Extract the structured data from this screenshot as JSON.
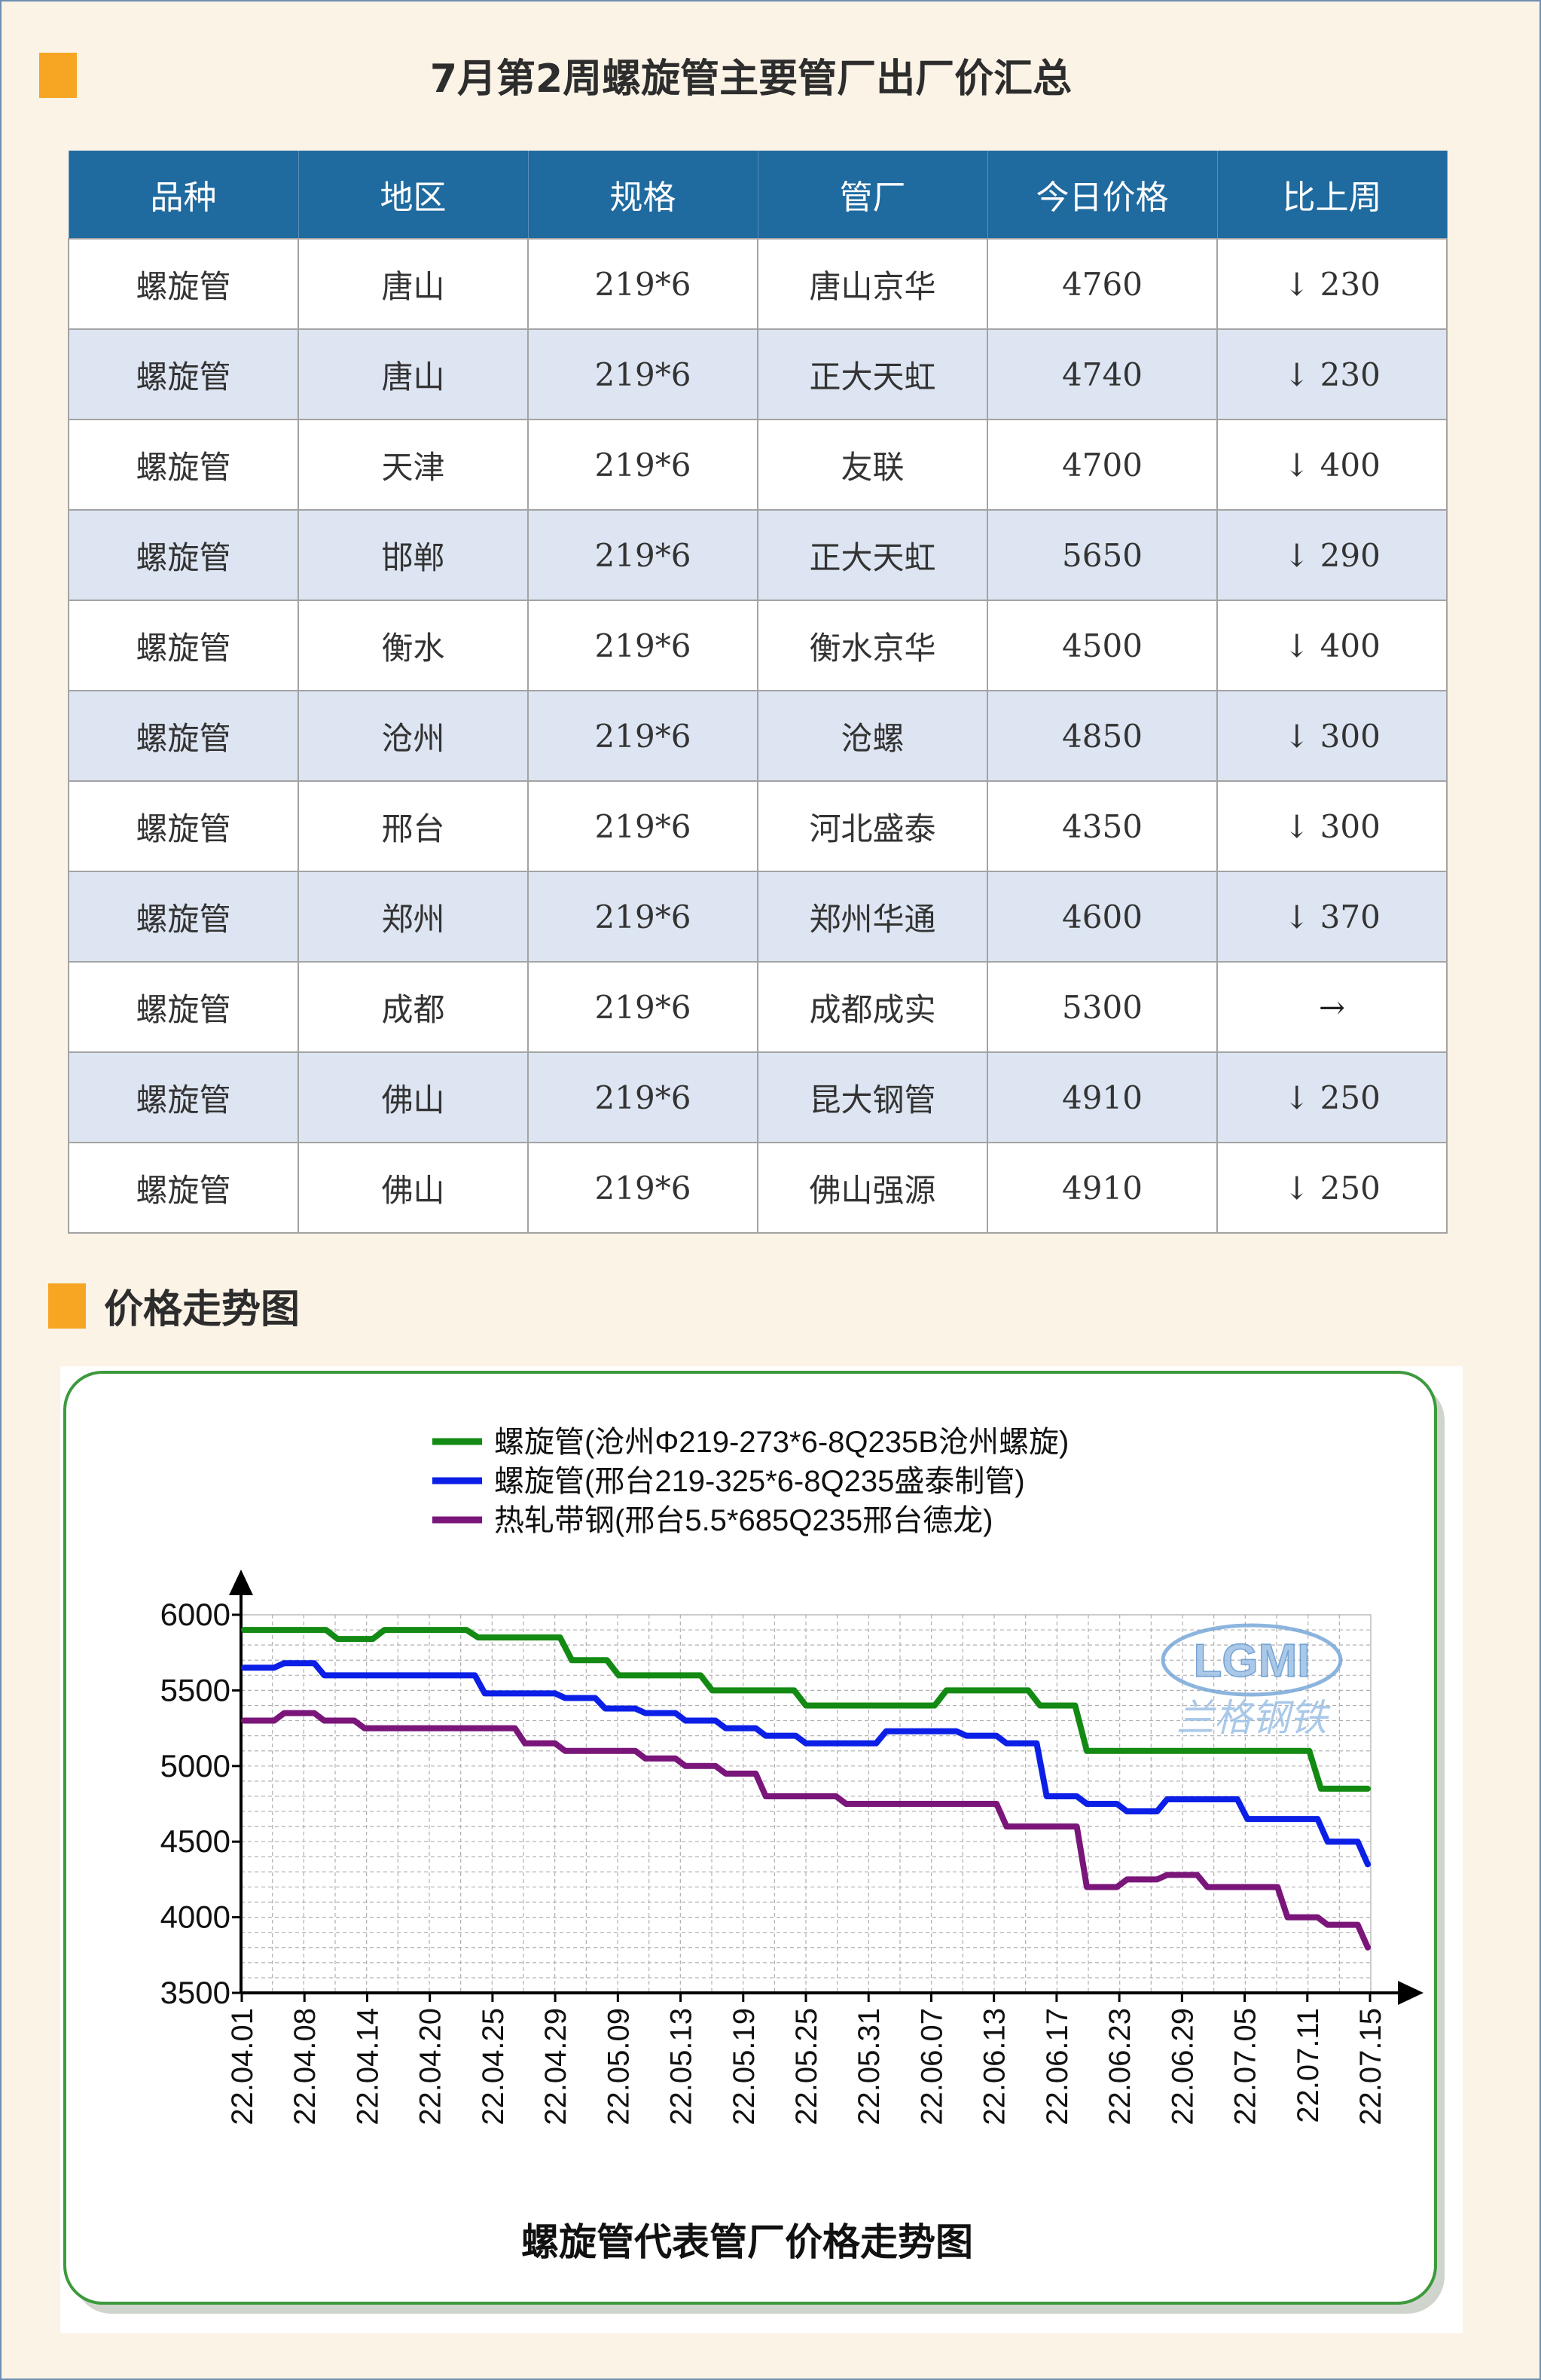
{
  "header": {
    "title": "7月第2周螺旋管主要管厂出厂价汇总"
  },
  "table": {
    "columns": [
      "品种",
      "地区",
      "规格",
      "管厂",
      "今日价格",
      "比上周"
    ],
    "rows": [
      {
        "variety": "螺旋管",
        "region": "唐山",
        "spec": "219*6",
        "mill": "唐山京华",
        "price": "4760",
        "change": "↓ 230"
      },
      {
        "variety": "螺旋管",
        "region": "唐山",
        "spec": "219*6",
        "mill": "正大天虹",
        "price": "4740",
        "change": "↓ 230"
      },
      {
        "variety": "螺旋管",
        "region": "天津",
        "spec": "219*6",
        "mill": "友联",
        "price": "4700",
        "change": "↓ 400"
      },
      {
        "variety": "螺旋管",
        "region": "邯郸",
        "spec": "219*6",
        "mill": "正大天虹",
        "price": "5650",
        "change": "↓ 290"
      },
      {
        "variety": "螺旋管",
        "region": "衡水",
        "spec": "219*6",
        "mill": "衡水京华",
        "price": "4500",
        "change": "↓ 400"
      },
      {
        "variety": "螺旋管",
        "region": "沧州",
        "spec": "219*6",
        "mill": "沧螺",
        "price": "4850",
        "change": "↓ 300"
      },
      {
        "variety": "螺旋管",
        "region": "邢台",
        "spec": "219*6",
        "mill": "河北盛泰",
        "price": "4350",
        "change": "↓ 300"
      },
      {
        "variety": "螺旋管",
        "region": "郑州",
        "spec": "219*6",
        "mill": "郑州华通",
        "price": "4600",
        "change": "↓ 370"
      },
      {
        "variety": "螺旋管",
        "region": "成都",
        "spec": "219*6",
        "mill": "成都成实",
        "price": "5300",
        "change": "→"
      },
      {
        "variety": "螺旋管",
        "region": "佛山",
        "spec": "219*6",
        "mill": "昆大钢管",
        "price": "4910",
        "change": "↓ 250"
      },
      {
        "variety": "螺旋管",
        "region": "佛山",
        "spec": "219*6",
        "mill": "佛山强源",
        "price": "4910",
        "change": "↓ 250"
      }
    ]
  },
  "section2": {
    "title": "价格走势图"
  },
  "colors": {
    "accent": "#f6a623",
    "header_bg": "#1f6a9f",
    "alt_row": "#dde5f2",
    "down": "#2e9a3c"
  },
  "chart_data": {
    "type": "line",
    "title": "螺旋管代表管厂价格走势图",
    "xlabel": "",
    "ylabel": "",
    "ylim": [
      3500,
      6000
    ],
    "yticks": [
      6000,
      5500,
      5000,
      4500,
      4000,
      3500
    ],
    "x_ticks": [
      "22.04.01",
      "22.04.08",
      "22.04.14",
      "22.04.20",
      "22.04.25",
      "22.04.29",
      "22.05.09",
      "22.05.13",
      "22.05.19",
      "22.05.25",
      "22.05.31",
      "22.06.07",
      "22.06.13",
      "22.06.17",
      "22.06.23",
      "22.06.29",
      "22.07.05",
      "22.07.11",
      "22.07.15"
    ],
    "grid": true,
    "legend": "top",
    "watermark": {
      "logo": "LGMI",
      "text": "兰格钢铁"
    },
    "series": [
      {
        "name": "螺旋管(沧州Φ219-273*6-8Q235B沧州螺旋)",
        "color": "#138a13",
        "values": [
          5900,
          5900,
          5840,
          5900,
          5900,
          5850,
          5850,
          5700,
          5600,
          5600,
          5500,
          5500,
          5400,
          5400,
          5400,
          5500,
          5500,
          5400,
          5100,
          5100,
          5100,
          5100,
          5100,
          4850,
          4850
        ]
      },
      {
        "name": "螺旋管(邢台219-325*6-8Q235盛泰制管)",
        "color": "#0b1fe6",
        "values": [
          5650,
          5680,
          5600,
          5600,
          5600,
          5600,
          5480,
          5480,
          5450,
          5380,
          5350,
          5300,
          5250,
          5200,
          5150,
          5150,
          5230,
          5230,
          5200,
          5150,
          4800,
          4750,
          4700,
          4780,
          4780,
          4650,
          4650,
          4500,
          4350
        ]
      },
      {
        "name": "热轧带钢(邢台5.5*685Q235邢台德龙)",
        "color": "#7a157a",
        "values": [
          5300,
          5350,
          5300,
          5250,
          5250,
          5250,
          5250,
          5150,
          5100,
          5100,
          5050,
          5000,
          4950,
          4800,
          4800,
          4750,
          4750,
          4750,
          4750,
          4600,
          4600,
          4200,
          4250,
          4280,
          4200,
          4200,
          4000,
          3950,
          3800
        ]
      }
    ]
  }
}
